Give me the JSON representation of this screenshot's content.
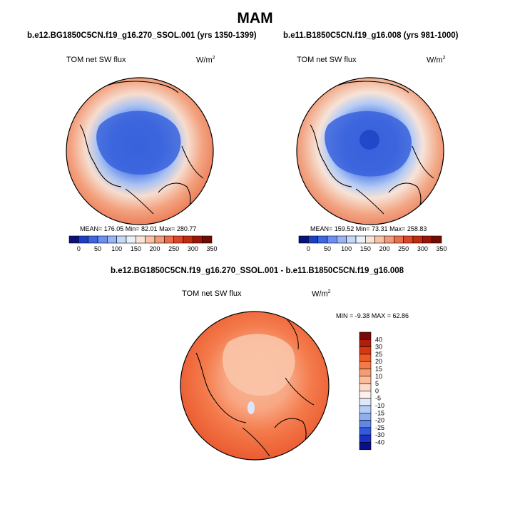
{
  "season": "MAM",
  "panels": [
    {
      "case": "b.e12.BG1850C5CN.f19_g16.270_SSOL.001 (yrs 1350-1399)",
      "field": "TOM net SW flux",
      "units": "W/m",
      "units_exp": "2",
      "stats": "MEAN= 176.05  Min=  82.01  Max= 280.77",
      "mean": 176.05,
      "min": 82.01,
      "max": 280.77
    },
    {
      "case": "b.e11.B1850C5CN.f19_g16.008 (yrs 981-1000)",
      "field": "TOM net SW flux",
      "units": "W/m",
      "units_exp": "2",
      "stats": "MEAN= 159.52  Min=  73.31  Max= 258.83",
      "mean": 159.52,
      "min": 73.31,
      "max": 258.83
    }
  ],
  "abs_colorbar": {
    "labels": [
      "0",
      "50",
      "100",
      "150",
      "200",
      "250",
      "300",
      "350"
    ],
    "colors": [
      "#08127a",
      "#1b3fc4",
      "#3e66e0",
      "#6d8ff0",
      "#9ab4f5",
      "#c6d8f8",
      "#e8f0fb",
      "#fbe3d6",
      "#f8c2a6",
      "#f49a78",
      "#ec6d4c",
      "#dd4428",
      "#c22a12",
      "#9e1508",
      "#740a04"
    ]
  },
  "diff_panel": {
    "title": "b.e12.BG1850C5CN.f19_g16.270_SSOL.001 - b.e11.B1850C5CN.f19_g16.008",
    "field": "TOM net SW flux",
    "units": "W/m",
    "units_exp": "2",
    "stats": "MIN =  -9.38 MAX =  62.86",
    "min": -9.38,
    "max": 62.86
  },
  "diff_colorbar": {
    "labels": [
      "40",
      "30",
      "25",
      "20",
      "15",
      "10",
      "5",
      "0",
      "-5",
      "-10",
      "-15",
      "-20",
      "-25",
      "-30",
      "-40"
    ],
    "colors": [
      "#7a0a05",
      "#b21d0c",
      "#d7380f",
      "#ee5a22",
      "#f47a4a",
      "#f89a72",
      "#fbbd9c",
      "#fddac8",
      "#fdf1ea",
      "#dde8fb",
      "#b7cdf6",
      "#8eaef1",
      "#6086e8",
      "#3459dd",
      "#1a32c4",
      "#0a0f85"
    ]
  }
}
